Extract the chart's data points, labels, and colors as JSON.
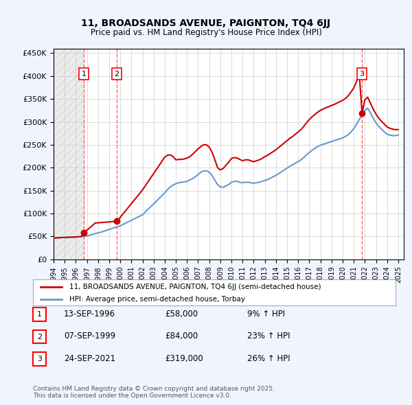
{
  "title": "11, BROADSANDS AVENUE, PAIGNTON, TQ4 6JJ",
  "subtitle": "Price paid vs. HM Land Registry's House Price Index (HPI)",
  "ylabel_ticks": [
    "£0",
    "£50K",
    "£100K",
    "£150K",
    "£200K",
    "£250K",
    "£300K",
    "£350K",
    "£400K",
    "£450K"
  ],
  "ytick_values": [
    0,
    50000,
    100000,
    150000,
    200000,
    250000,
    300000,
    350000,
    400000,
    450000
  ],
  "xmin": 1994.0,
  "xmax": 2025.5,
  "ymin": 0,
  "ymax": 460000,
  "sale_dates": [
    1996.71,
    1999.69,
    2021.73
  ],
  "sale_prices": [
    58000,
    84000,
    319000
  ],
  "sale_labels": [
    "1",
    "2",
    "3"
  ],
  "hpi_color": "#6699cc",
  "price_color": "#cc0000",
  "dashed_line_color": "#ff6666",
  "legend_price_label": "11, BROADSANDS AVENUE, PAIGNTON, TQ4 6JJ (semi-detached house)",
  "legend_hpi_label": "HPI: Average price, semi-detached house, Torbay",
  "table_entries": [
    {
      "label": "1",
      "date": "13-SEP-1996",
      "price": "£58,000",
      "change": "9% ↑ HPI"
    },
    {
      "label": "2",
      "date": "07-SEP-1999",
      "price": "£84,000",
      "change": "23% ↑ HPI"
    },
    {
      "label": "3",
      "date": "24-SEP-2021",
      "price": "£319,000",
      "change": "26% ↑ HPI"
    }
  ],
  "footnote": "Contains HM Land Registry data © Crown copyright and database right 2025.\nThis data is licensed under the Open Government Licence v3.0.",
  "hpi_x": [
    1994.0,
    1994.25,
    1994.5,
    1994.75,
    1995.0,
    1995.25,
    1995.5,
    1995.75,
    1996.0,
    1996.25,
    1996.5,
    1996.75,
    1997.0,
    1997.25,
    1997.5,
    1997.75,
    1998.0,
    1998.25,
    1998.5,
    1998.75,
    1999.0,
    1999.25,
    1999.5,
    1999.75,
    2000.0,
    2000.25,
    2000.5,
    2000.75,
    2001.0,
    2001.25,
    2001.5,
    2001.75,
    2002.0,
    2002.25,
    2002.5,
    2002.75,
    2003.0,
    2003.25,
    2003.5,
    2003.75,
    2004.0,
    2004.25,
    2004.5,
    2004.75,
    2005.0,
    2005.25,
    2005.5,
    2005.75,
    2006.0,
    2006.25,
    2006.5,
    2006.75,
    2007.0,
    2007.25,
    2007.5,
    2007.75,
    2008.0,
    2008.25,
    2008.5,
    2008.75,
    2009.0,
    2009.25,
    2009.5,
    2009.75,
    2010.0,
    2010.25,
    2010.5,
    2010.75,
    2011.0,
    2011.25,
    2011.5,
    2011.75,
    2012.0,
    2012.25,
    2012.5,
    2012.75,
    2013.0,
    2013.25,
    2013.5,
    2013.75,
    2014.0,
    2014.25,
    2014.5,
    2014.75,
    2015.0,
    2015.25,
    2015.5,
    2015.75,
    2016.0,
    2016.25,
    2016.5,
    2016.75,
    2017.0,
    2017.25,
    2017.5,
    2017.75,
    2018.0,
    2018.25,
    2018.5,
    2018.75,
    2019.0,
    2019.25,
    2019.5,
    2019.75,
    2020.0,
    2020.25,
    2020.5,
    2020.75,
    2021.0,
    2021.25,
    2021.5,
    2021.75,
    2022.0,
    2022.25,
    2022.5,
    2022.75,
    2023.0,
    2023.25,
    2023.5,
    2023.75,
    2024.0,
    2024.25,
    2024.5,
    2024.75,
    2025.0
  ],
  "hpi_y": [
    46000,
    46500,
    47000,
    47200,
    47500,
    47800,
    48000,
    48300,
    48500,
    49000,
    49500,
    50000,
    51000,
    52500,
    54000,
    56000,
    57500,
    59000,
    61000,
    63000,
    65000,
    67000,
    69000,
    71000,
    73000,
    76000,
    79000,
    82000,
    85000,
    88000,
    91000,
    94000,
    97000,
    103000,
    109000,
    115000,
    121000,
    127000,
    133000,
    139000,
    145000,
    152000,
    158000,
    162000,
    165000,
    167000,
    168000,
    169000,
    170000,
    173000,
    176000,
    180000,
    185000,
    190000,
    193000,
    193000,
    190000,
    183000,
    173000,
    163000,
    158000,
    157000,
    160000,
    163000,
    168000,
    170000,
    170000,
    168000,
    167000,
    168000,
    168000,
    167000,
    166000,
    167000,
    168000,
    170000,
    172000,
    174000,
    177000,
    180000,
    183000,
    187000,
    191000,
    195000,
    199000,
    203000,
    206000,
    210000,
    213000,
    217000,
    222000,
    228000,
    233000,
    238000,
    242000,
    246000,
    249000,
    251000,
    253000,
    255000,
    257000,
    259000,
    261000,
    263000,
    265000,
    268000,
    272000,
    278000,
    285000,
    295000,
    305000,
    315000,
    325000,
    330000,
    320000,
    308000,
    298000,
    290000,
    284000,
    278000,
    273000,
    271000,
    270000,
    270000,
    271000
  ],
  "price_x": [
    1994.0,
    1994.25,
    1994.5,
    1994.75,
    1995.0,
    1995.25,
    1995.5,
    1995.75,
    1996.0,
    1996.25,
    1996.5,
    1996.75,
    1997.0,
    1997.25,
    1997.5,
    1997.75,
    1998.0,
    1998.25,
    1998.5,
    1998.75,
    1999.0,
    1999.25,
    1999.5,
    1999.75,
    2000.0,
    2000.25,
    2000.5,
    2000.75,
    2001.0,
    2001.25,
    2001.5,
    2001.75,
    2002.0,
    2002.25,
    2002.5,
    2002.75,
    2003.0,
    2003.25,
    2003.5,
    2003.75,
    2004.0,
    2004.25,
    2004.5,
    2004.75,
    2005.0,
    2005.25,
    2005.5,
    2005.75,
    2006.0,
    2006.25,
    2006.5,
    2006.75,
    2007.0,
    2007.25,
    2007.5,
    2007.75,
    2008.0,
    2008.25,
    2008.5,
    2008.75,
    2009.0,
    2009.25,
    2009.5,
    2009.75,
    2010.0,
    2010.25,
    2010.5,
    2010.75,
    2011.0,
    2011.25,
    2011.5,
    2011.75,
    2012.0,
    2012.25,
    2012.5,
    2012.75,
    2013.0,
    2013.25,
    2013.5,
    2013.75,
    2014.0,
    2014.25,
    2014.5,
    2014.75,
    2015.0,
    2015.25,
    2015.5,
    2015.75,
    2016.0,
    2016.25,
    2016.5,
    2016.75,
    2017.0,
    2017.25,
    2017.5,
    2017.75,
    2018.0,
    2018.25,
    2018.5,
    2018.75,
    2019.0,
    2019.25,
    2019.5,
    2019.75,
    2020.0,
    2020.25,
    2020.5,
    2020.75,
    2021.0,
    2021.25,
    2021.5,
    2021.75,
    2022.0,
    2022.25,
    2022.5,
    2022.75,
    2023.0,
    2023.25,
    2023.5,
    2023.75,
    2024.0,
    2024.25,
    2024.5,
    2024.75,
    2025.0
  ],
  "price_y": [
    46000,
    46500,
    47000,
    47200,
    47500,
    47800,
    48000,
    48300,
    48500,
    49000,
    49500,
    58000,
    63267,
    68533,
    73800,
    79067,
    79500,
    80000,
    80500,
    81000,
    81500,
    82000,
    82500,
    84000,
    91467,
    98933,
    106400,
    113867,
    121333,
    128800,
    136267,
    143733,
    151200,
    160133,
    169067,
    178000,
    187000,
    196000,
    205000,
    214000,
    223000,
    227000,
    228000,
    224000,
    217000,
    218000,
    218000,
    219000,
    221000,
    224000,
    229000,
    235000,
    241000,
    246000,
    250000,
    250000,
    245000,
    234000,
    218000,
    200000,
    195000,
    198000,
    205000,
    212000,
    220000,
    222000,
    221000,
    218000,
    215000,
    217000,
    217000,
    215000,
    213000,
    215000,
    217000,
    220000,
    224000,
    227000,
    231000,
    235000,
    239000,
    244000,
    249000,
    254000,
    259000,
    264000,
    268000,
    273000,
    278000,
    283000,
    290000,
    298000,
    305000,
    311000,
    316000,
    321000,
    325000,
    328000,
    331000,
    333000,
    336000,
    338000,
    341000,
    344000,
    347000,
    351000,
    357000,
    365000,
    374000,
    388000,
    404000,
    319000,
    348000,
    354000,
    341000,
    328000,
    317000,
    308000,
    301000,
    295000,
    289000,
    286000,
    284000,
    283000,
    283000
  ],
  "background_color": "#f0f4ff",
  "chart_bg": "#ffffff",
  "grid_color": "#cccccc"
}
